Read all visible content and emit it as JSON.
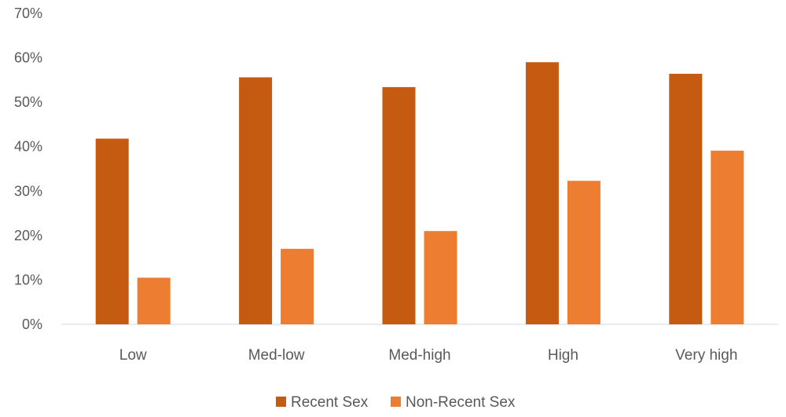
{
  "chart_data": {
    "type": "bar",
    "title": "",
    "xlabel": "",
    "ylabel": "",
    "categories": [
      "Low",
      "Med-low",
      "Med-high",
      "High",
      "Very high"
    ],
    "series": [
      {
        "name": "Recent Sex",
        "color": "#C55A11",
        "values": [
          41.8,
          55.6,
          53.4,
          59.0,
          56.4
        ]
      },
      {
        "name": "Non-Recent Sex",
        "color": "#ED7D31",
        "values": [
          10.5,
          17.0,
          21.0,
          32.3,
          39.1
        ]
      }
    ],
    "ylim": [
      0,
      70
    ],
    "yticks": [
      "0%",
      "10%",
      "20%",
      "30%",
      "40%",
      "50%",
      "60%",
      "70%"
    ],
    "grid": false,
    "legend": "bottom"
  }
}
